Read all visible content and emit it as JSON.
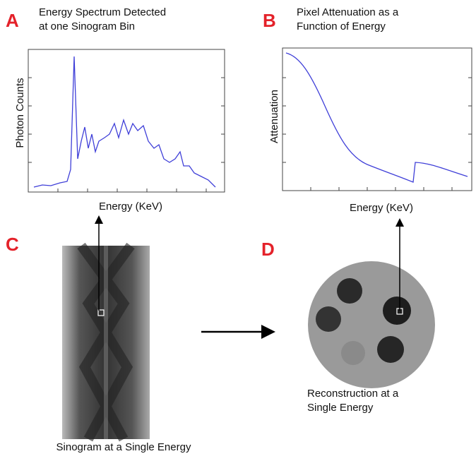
{
  "panels": [
    {
      "label": "A",
      "title_lines": [
        "Energy Spectrum Detected",
        "at one Sinogram Bin"
      ],
      "y_axis_label": "Photon Counts",
      "x_axis_label": "Energy (KeV)"
    },
    {
      "label": "B",
      "title_lines": [
        "Pixel Attenuation as a",
        "Function of Energy"
      ],
      "y_axis_label": "Attenuation",
      "x_axis_label": "Energy (KeV)"
    },
    {
      "label": "C",
      "caption_lines": [
        "Sinogram at a Single Energy"
      ]
    },
    {
      "label": "D",
      "caption_lines": [
        "Reconstruction at a",
        "Single Energy"
      ]
    }
  ]
}
